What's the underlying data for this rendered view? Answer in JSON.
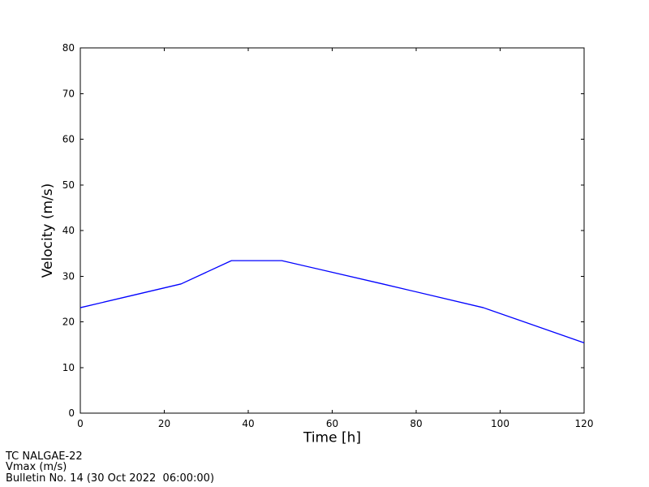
{
  "chart_data": {
    "type": "line",
    "title": "",
    "xlabel": "Time [h]",
    "ylabel": "Velocity (m/s)",
    "x": [
      0,
      12,
      24,
      36,
      48,
      72,
      96,
      120
    ],
    "series": [
      {
        "name": "Vmax (m/s)",
        "values": [
          23.1,
          25.7,
          28.3,
          33.4,
          33.4,
          28.3,
          23.1,
          15.4
        ],
        "color": "#0000ff"
      }
    ],
    "xlim": [
      0,
      120
    ],
    "ylim": [
      0,
      80
    ],
    "xticks": [
      0,
      20,
      40,
      60,
      80,
      100,
      120
    ],
    "yticks": [
      0,
      10,
      20,
      30,
      40,
      50,
      60,
      70,
      80
    ],
    "grid": false,
    "legend": "none",
    "axis_color": "#000000",
    "background_color": "#ffffff"
  },
  "footer": {
    "storm_name": "TC NALGAE-22",
    "variable": "Vmax (m/s)",
    "bulletin": "Bulletin No. 14 (30 Oct 2022  06:00:00)"
  }
}
